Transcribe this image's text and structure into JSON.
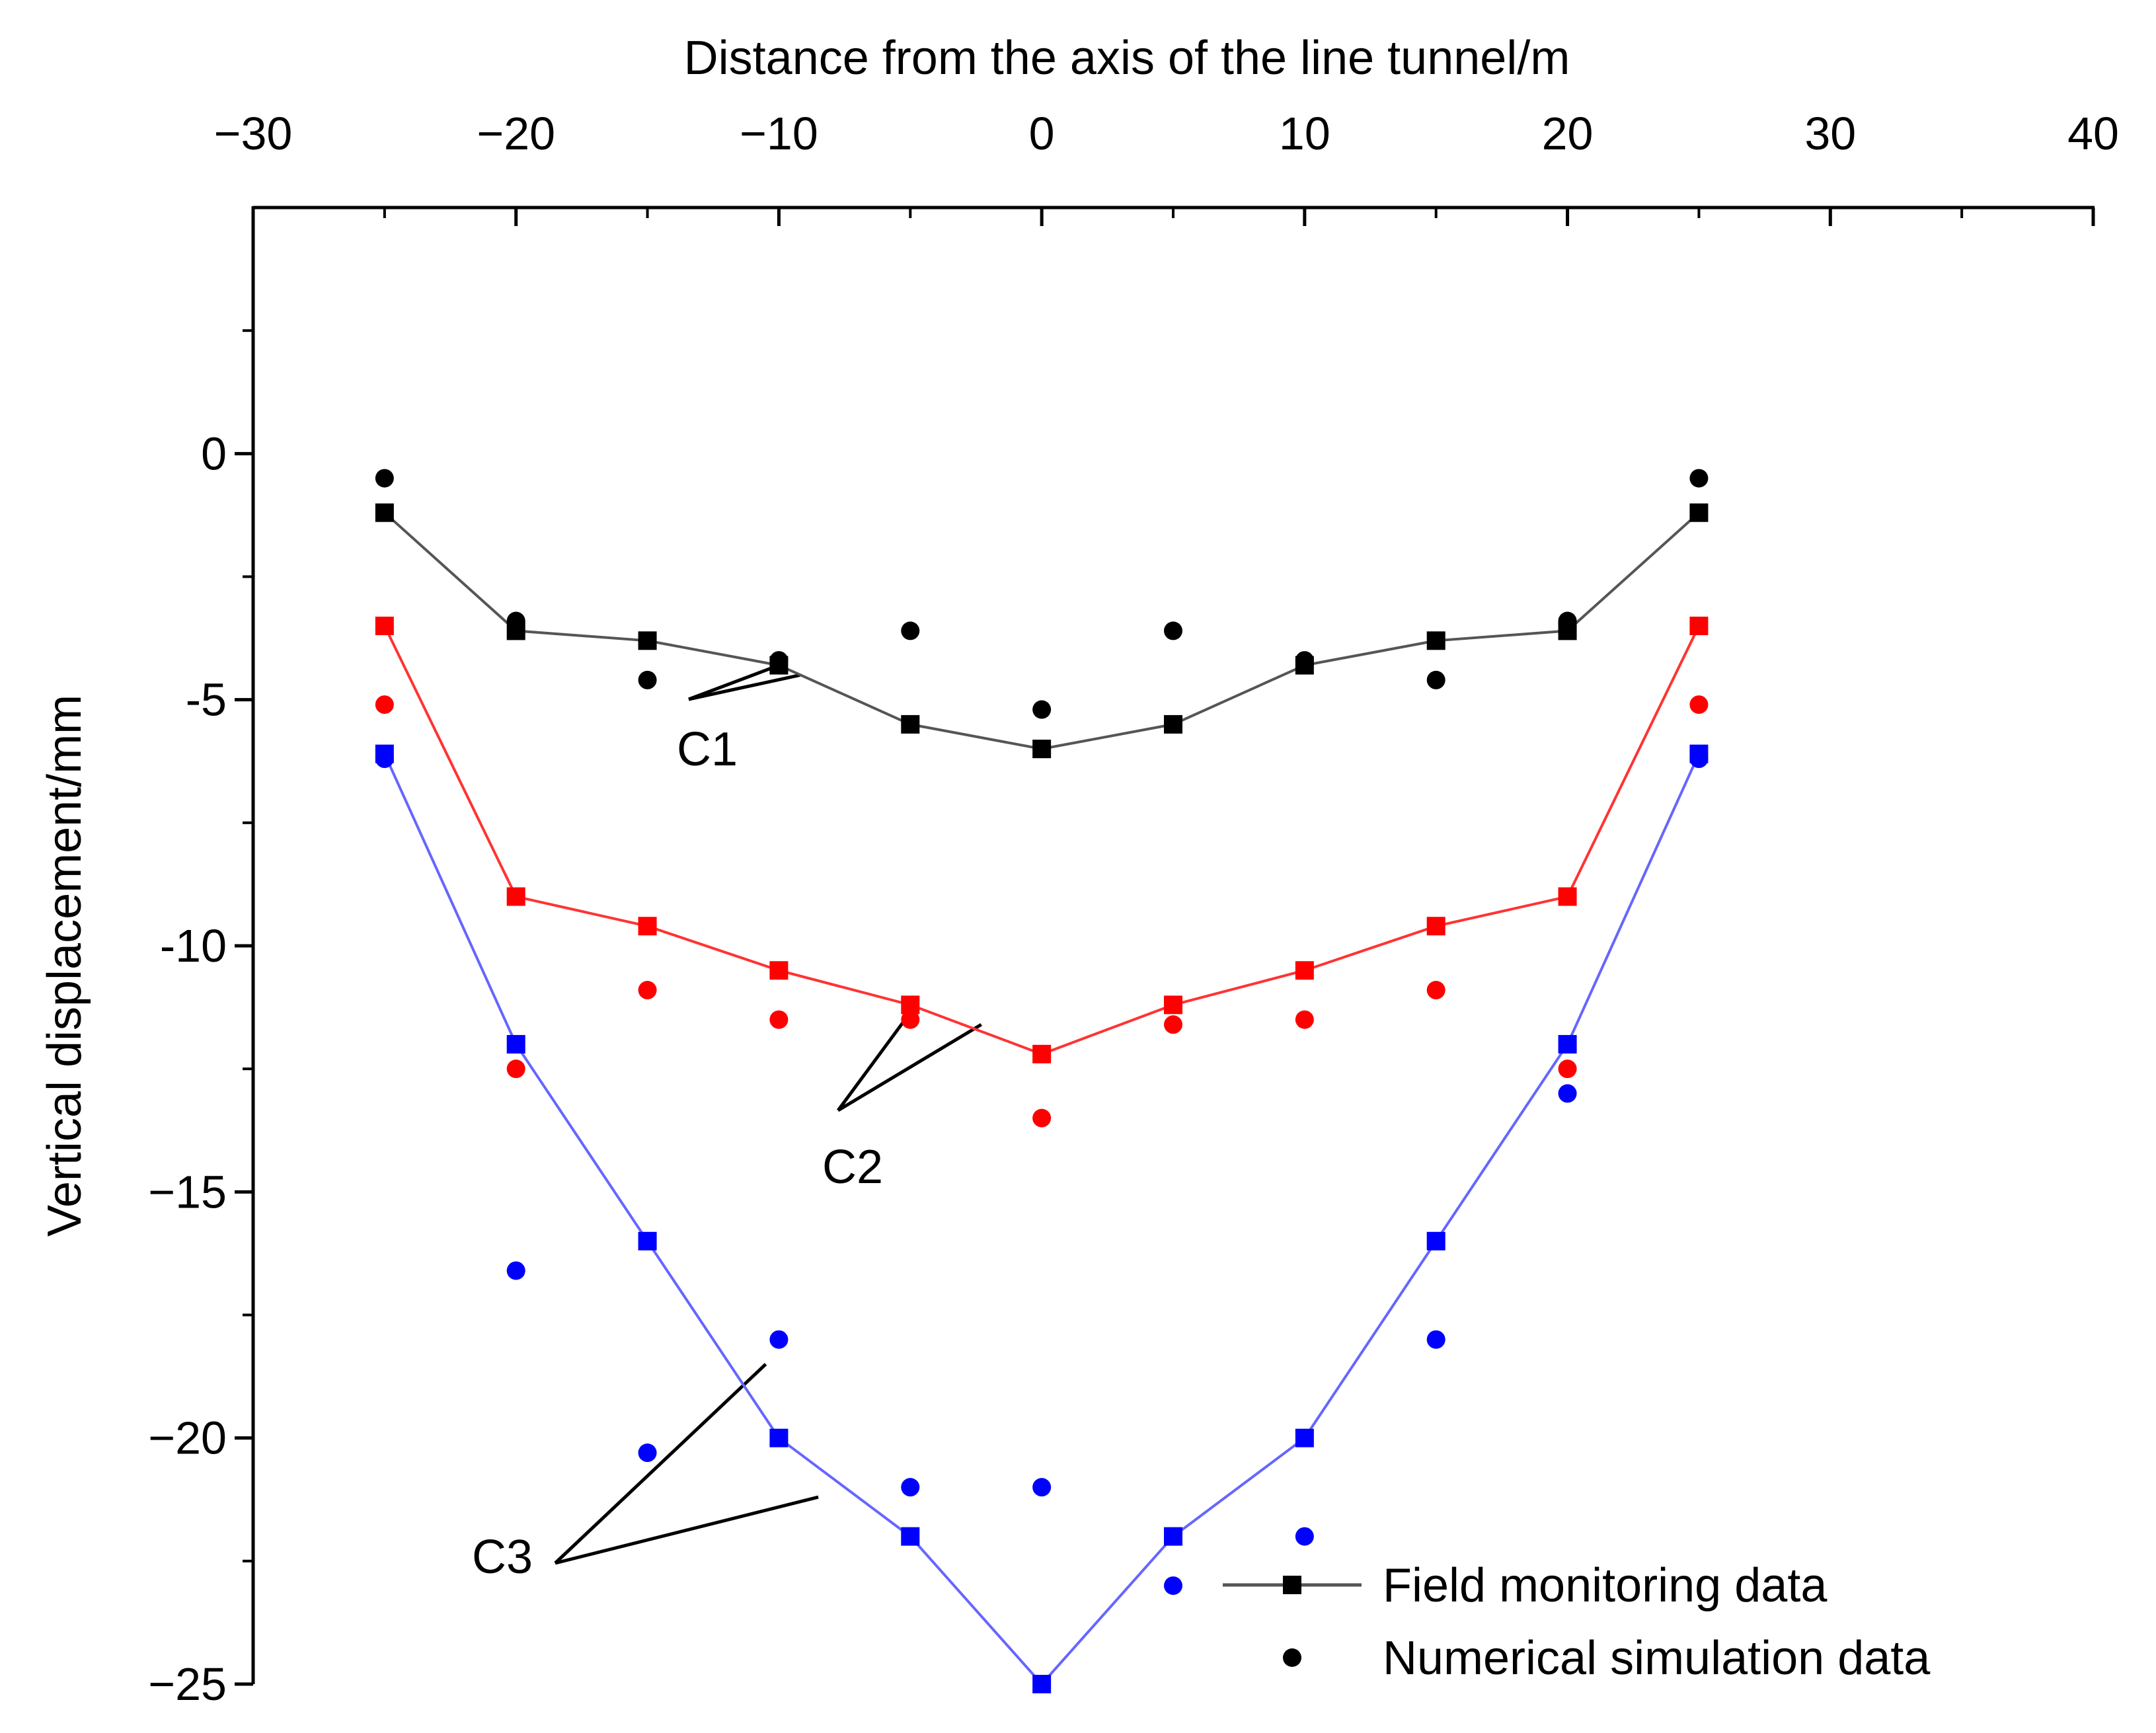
{
  "chart_data": {
    "type": "line+scatter",
    "xlabel": "Distance from the axis of the line tunnel/m",
    "ylabel": "Vertical displacement/mm",
    "x_axis_position": "top",
    "xlim": [
      -30,
      40
    ],
    "ylim": [
      -25,
      5
    ],
    "xticks": [
      -30,
      -20,
      -10,
      0,
      10,
      20,
      30,
      40
    ],
    "yticks": [
      0,
      -5,
      -10,
      -15,
      -20,
      -25
    ],
    "xtick_labels": [
      "−30",
      "−20",
      "−10",
      "0",
      "10",
      "20",
      "30",
      "40"
    ],
    "ytick_labels": [
      "0",
      "-5",
      "-10",
      "−15",
      "−20",
      "−25"
    ],
    "grid": false,
    "legend": {
      "placement": "bottom-right",
      "entries": [
        {
          "label": "Field monitoring data",
          "marker": "square",
          "line": true
        },
        {
          "label": "Numerical simulation data",
          "marker": "circle",
          "line": false
        }
      ]
    },
    "series": [
      {
        "name": "C1",
        "kind": "field",
        "color": "#000000",
        "line_color": "#555555",
        "marker": "square",
        "x": [
          -25,
          -20,
          -15,
          -10,
          -5,
          0,
          5,
          10,
          15,
          20,
          25
        ],
        "y": [
          -1.2,
          -3.6,
          -3.8,
          -4.3,
          -5.5,
          -6.0,
          -5.5,
          -4.3,
          -3.8,
          -3.6,
          -1.2
        ]
      },
      {
        "name": "C1",
        "kind": "simulation",
        "color": "#000000",
        "marker": "circle",
        "x": [
          -25,
          -20,
          -15,
          -10,
          -5,
          0,
          5,
          10,
          15,
          20,
          25
        ],
        "y": [
          -0.5,
          -3.4,
          -4.6,
          -4.2,
          -3.6,
          -5.2,
          -3.6,
          -4.2,
          -4.6,
          -3.4,
          -0.5
        ]
      },
      {
        "name": "C2",
        "kind": "field",
        "color": "#ff0000",
        "line_color": "#ff3333",
        "marker": "square",
        "x": [
          -25,
          -20,
          -15,
          -10,
          -5,
          0,
          5,
          10,
          15,
          20,
          25
        ],
        "y": [
          -3.5,
          -9.0,
          -9.6,
          -10.5,
          -11.2,
          -12.2,
          -11.2,
          -10.5,
          -9.6,
          -9.0,
          -3.5
        ]
      },
      {
        "name": "C2",
        "kind": "simulation",
        "color": "#ff0000",
        "marker": "circle",
        "x": [
          -25,
          -20,
          -15,
          -10,
          -5,
          0,
          5,
          10,
          15,
          20,
          25
        ],
        "y": [
          -5.1,
          -12.5,
          -10.9,
          -11.5,
          -11.5,
          -13.5,
          -11.6,
          -11.5,
          -10.9,
          -12.5,
          -5.1
        ]
      },
      {
        "name": "C3",
        "kind": "field",
        "color": "#0000ff",
        "line_color": "#6666ff",
        "marker": "square",
        "x": [
          -25,
          -20,
          -15,
          -10,
          -5,
          0,
          5,
          10,
          15,
          20,
          25
        ],
        "y": [
          -6.1,
          -12.0,
          -16.0,
          -20.0,
          -22.0,
          -25.0,
          -22.0,
          -20.0,
          -16.0,
          -12.0,
          -6.1
        ]
      },
      {
        "name": "C3",
        "kind": "simulation",
        "color": "#0000ff",
        "marker": "circle",
        "x": [
          -25,
          -20,
          -15,
          -10,
          -5,
          0,
          5,
          10,
          15,
          20,
          25
        ],
        "y": [
          -6.2,
          -16.6,
          -20.3,
          -18.0,
          -21.0,
          -21.0,
          -23.0,
          -22.0,
          -18.0,
          -13.0,
          -6.2
        ]
      }
    ],
    "annotations": [
      {
        "text": "C1",
        "target_series": "C1",
        "targets": [
          [
            -10,
            -4.3
          ],
          [
            -9.2,
            -4.5
          ]
        ]
      },
      {
        "text": "C2",
        "target_series": "C2",
        "targets": [
          [
            -5.2,
            -11.5
          ],
          [
            -2.3,
            -11.6
          ]
        ]
      },
      {
        "text": "C3",
        "target_series": "C3",
        "targets": [
          [
            -10.5,
            -18.5
          ],
          [
            -8.5,
            -21.2
          ]
        ]
      }
    ]
  }
}
